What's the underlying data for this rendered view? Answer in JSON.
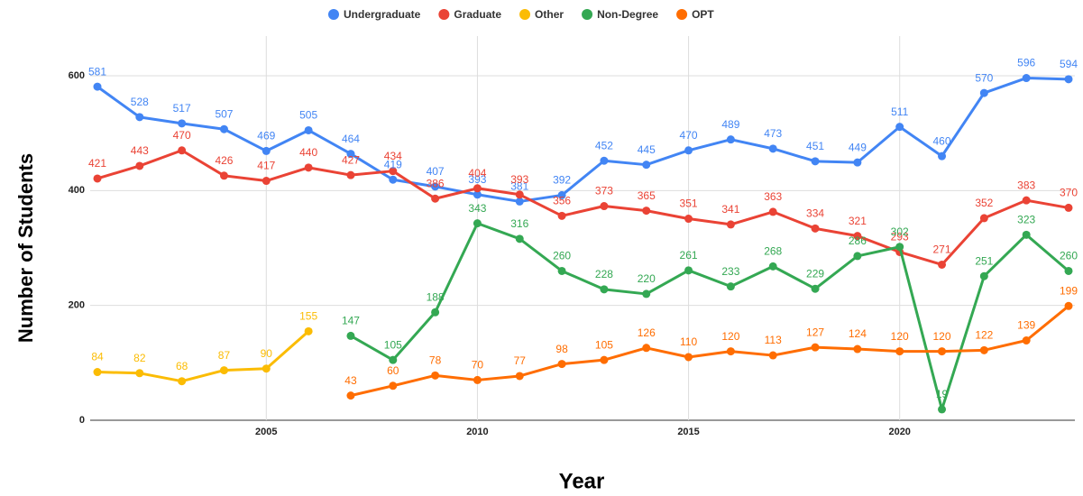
{
  "chart_data": {
    "type": "line",
    "x_label": "Year",
    "y_label": "Number of Students",
    "x": [
      2001,
      2002,
      2003,
      2004,
      2005,
      2006,
      2007,
      2008,
      2009,
      2010,
      2011,
      2012,
      2013,
      2014,
      2015,
      2016,
      2017,
      2018,
      2019,
      2020,
      2021,
      2022,
      2023,
      2024
    ],
    "xlim": [
      2001,
      2024
    ],
    "xticks": [
      2005,
      2010,
      2015,
      2020
    ],
    "ylim": [
      0,
      600
    ],
    "yticks": [
      0,
      200,
      400,
      600
    ],
    "grid": true,
    "legend": "top",
    "series": [
      {
        "name": "Undergraduate",
        "color": "#4285f4",
        "values": [
          581,
          528,
          517,
          507,
          469,
          505,
          464,
          419,
          407,
          393,
          381,
          392,
          452,
          445,
          470,
          489,
          473,
          451,
          449,
          511,
          460,
          570,
          596,
          594
        ]
      },
      {
        "name": "Graduate",
        "color": "#ea4335",
        "values": [
          421,
          443,
          470,
          426,
          417,
          440,
          427,
          434,
          386,
          404,
          393,
          356,
          373,
          365,
          351,
          341,
          363,
          334,
          321,
          293,
          271,
          352,
          383,
          370
        ]
      },
      {
        "name": "Other",
        "color": "#fbbc04",
        "values": [
          84,
          82,
          68,
          87,
          90,
          155,
          null,
          null,
          null,
          null,
          null,
          null,
          null,
          null,
          null,
          null,
          null,
          null,
          null,
          null,
          null,
          null,
          null,
          null
        ]
      },
      {
        "name": "Non-Degree",
        "color": "#34a853",
        "values": [
          null,
          null,
          null,
          null,
          null,
          null,
          147,
          105,
          188,
          343,
          316,
          260,
          228,
          220,
          261,
          233,
          268,
          229,
          286,
          302,
          19,
          251,
          323,
          260
        ]
      },
      {
        "name": "OPT",
        "color": "#ff6d01",
        "values": [
          null,
          null,
          null,
          null,
          null,
          null,
          43,
          60,
          78,
          70,
          77,
          98,
          105,
          126,
          110,
          120,
          113,
          127,
          124,
          120,
          120,
          122,
          139,
          199
        ]
      }
    ]
  }
}
